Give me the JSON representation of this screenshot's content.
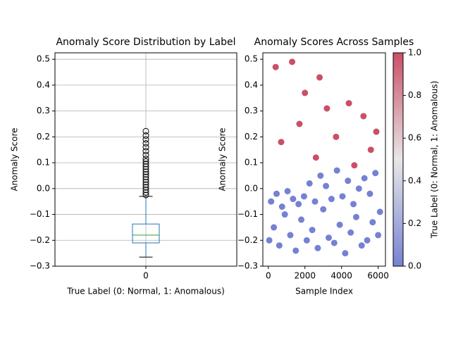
{
  "chart_data": [
    {
      "type": "box",
      "title": "Anomaly Score Distribution by Label",
      "xlabel": "True Label (0: Normal, 1: Anomalous)",
      "ylabel": "Anomaly Score",
      "categories": [
        "0"
      ],
      "boxes": [
        {
          "whislo": -0.265,
          "q1": -0.21,
          "med": -0.18,
          "q3": -0.137,
          "whishi": -0.03,
          "fliers": [
            -0.025,
            -0.015,
            -0.005,
            0.005,
            0.015,
            0.025,
            0.035,
            0.045,
            0.055,
            0.065,
            0.075,
            0.085,
            0.095,
            0.105,
            0.115,
            0.13,
            0.145,
            0.16,
            0.175,
            0.19,
            0.205,
            0.222
          ]
        }
      ],
      "box_color": "#1f77b4",
      "median_color": "#2ca02c",
      "ylim": [
        -0.3,
        0.525
      ],
      "yticks": [
        {
          "value": -0.3,
          "label": "−0.3"
        },
        {
          "value": -0.2,
          "label": "−0.2"
        },
        {
          "value": -0.1,
          "label": "−0.1"
        },
        {
          "value": 0,
          "label": "0.0"
        },
        0.1,
        0.2,
        0.3,
        0.4,
        0.5
      ],
      "grid": true
    },
    {
      "type": "scatter",
      "title": "Anomaly Scores Across Samples",
      "xlabel": "Sample Index",
      "ylabel": "Anomaly Score",
      "x": [
        50,
        300,
        600,
        900,
        1200,
        1500,
        1800,
        2100,
        2400,
        2700,
        3000,
        3300,
        3600,
        3900,
        4200,
        4500,
        4800,
        5100,
        5400,
        5700,
        6000,
        150,
        450,
        750,
        1050,
        1350,
        1650,
        1950,
        2250,
        2550,
        2850,
        3150,
        3450,
        3750,
        4050,
        4350,
        4650,
        4950,
        5250,
        5550,
        5850,
        6100,
        400,
        1300,
        2000,
        2800,
        3200,
        4400,
        5200,
        5900,
        700,
        1700,
        2600,
        3700,
        4700,
        5600
      ],
      "y": [
        -0.2,
        -0.15,
        -0.22,
        -0.1,
        -0.18,
        -0.24,
        -0.12,
        -0.2,
        -0.16,
        -0.23,
        -0.08,
        -0.19,
        -0.21,
        -0.14,
        -0.25,
        -0.17,
        -0.11,
        -0.22,
        -0.2,
        -0.13,
        -0.18,
        -0.05,
        -0.02,
        -0.07,
        -0.01,
        -0.04,
        -0.06,
        -0.03,
        0.02,
        -0.05,
        0.05,
        0.01,
        -0.04,
        0.07,
        -0.03,
        0.03,
        -0.06,
        0.0,
        0.04,
        -0.02,
        0.06,
        -0.09,
        0.47,
        0.49,
        0.37,
        0.43,
        0.31,
        0.33,
        0.28,
        0.22,
        0.18,
        0.25,
        0.12,
        0.2,
        0.09,
        0.15
      ],
      "c": [
        0,
        0,
        0,
        0,
        0,
        0,
        0,
        0,
        0,
        0,
        0,
        0,
        0,
        0,
        0,
        0,
        0,
        0,
        0,
        0,
        0,
        0,
        0,
        0,
        0,
        0,
        0,
        0,
        0,
        0,
        0,
        0,
        0,
        0,
        0,
        0,
        0,
        0,
        0,
        0,
        0,
        0,
        1,
        1,
        1,
        1,
        1,
        1,
        1,
        1,
        1,
        1,
        1,
        1,
        1,
        1
      ],
      "cmap": [
        "#3b4cc0",
        "#dddddd",
        "#b40426"
      ],
      "xlim": [
        -300,
        6400
      ],
      "xticks": [
        0,
        2000,
        4000,
        6000
      ],
      "ylim": [
        -0.3,
        0.525
      ],
      "yticks": [
        {
          "value": -0.3,
          "label": "−0.3"
        },
        {
          "value": -0.2,
          "label": "−0.2"
        },
        {
          "value": -0.1,
          "label": "−0.1"
        },
        {
          "value": 0,
          "label": "0.0"
        },
        0.1,
        0.2,
        0.3,
        0.4,
        0.5
      ],
      "colorbar": {
        "label": "True Label (0: Normal, 1: Anomalous)",
        "lim": [
          0,
          1
        ],
        "ticks": [
          {
            "value": 0,
            "label": "0.0"
          },
          0.2,
          0.4,
          0.6,
          0.8,
          {
            "value": 1,
            "label": "1.0"
          }
        ]
      }
    }
  ]
}
